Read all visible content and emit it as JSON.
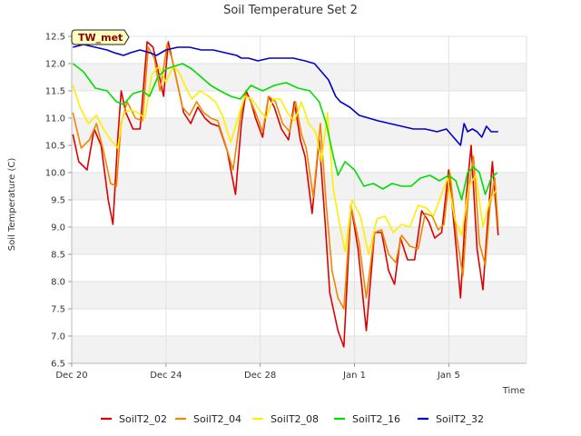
{
  "chart_data": {
    "type": "line",
    "title": "Soil Temperature Set 2",
    "badge": "TW_met",
    "xlabel": "Time",
    "ylabel": "Soil Temperature (C)",
    "xlim": [
      0,
      19.3
    ],
    "ylim": [
      6.5,
      12.5
    ],
    "x_ticks": [
      {
        "x": 0,
        "label": "Dec 20"
      },
      {
        "x": 4,
        "label": "Dec 24"
      },
      {
        "x": 8,
        "label": "Dec 28"
      },
      {
        "x": 12,
        "label": "Jan 1"
      },
      {
        "x": 16,
        "label": "Jan 5"
      }
    ],
    "y_ticks": [
      6.5,
      7.0,
      7.5,
      8.0,
      8.5,
      9.0,
      9.5,
      10.0,
      10.5,
      11.0,
      11.5,
      12.0,
      12.5
    ],
    "y_tick_labels": [
      "6.5",
      "7.0",
      "7.5",
      "8.0",
      "8.5",
      "9.0",
      "9.5",
      "10.0",
      "10.5",
      "11.0",
      "11.5",
      "12.0",
      "12.5"
    ],
    "grid": true,
    "legend_position": "bottom",
    "series": [
      {
        "name": "SoilT2_02",
        "color": "#dd0000",
        "x": [
          0.05,
          0.3,
          0.65,
          0.95,
          1.25,
          1.55,
          1.75,
          1.95,
          2.1,
          2.3,
          2.6,
          2.9,
          3.2,
          3.45,
          3.6,
          3.9,
          4.1,
          4.3,
          4.5,
          4.75,
          5.05,
          5.35,
          5.65,
          5.9,
          6.25,
          6.6,
          6.95,
          7.2,
          7.4,
          7.6,
          7.8,
          8.1,
          8.35,
          8.6,
          8.9,
          9.2,
          9.45,
          9.7,
          9.9,
          10.2,
          10.5,
          10.75,
          10.95,
          11.3,
          11.55,
          11.85,
          12.15,
          12.5,
          12.85,
          13.15,
          13.45,
          13.7,
          13.95,
          14.25,
          14.55,
          14.85,
          15.15,
          15.4,
          15.7,
          16.0,
          16.3,
          16.5,
          16.75,
          16.95,
          17.2,
          17.45,
          17.65,
          17.85,
          18.1
        ],
        "y": [
          10.7,
          10.2,
          10.05,
          10.8,
          10.5,
          9.5,
          9.05,
          10.6,
          11.5,
          11.1,
          10.8,
          10.8,
          12.4,
          12.3,
          12.0,
          11.4,
          12.4,
          12.0,
          11.6,
          11.1,
          10.9,
          11.2,
          11.0,
          10.9,
          10.85,
          10.4,
          9.6,
          10.9,
          11.5,
          11.3,
          11.0,
          10.65,
          11.4,
          11.2,
          10.8,
          10.6,
          11.3,
          10.6,
          10.3,
          9.25,
          10.6,
          9.1,
          7.8,
          7.1,
          6.8,
          9.4,
          8.6,
          7.1,
          8.9,
          8.9,
          8.2,
          7.95,
          8.8,
          8.4,
          8.4,
          9.3,
          9.1,
          8.8,
          8.9,
          10.05,
          8.7,
          7.7,
          9.6,
          10.5,
          8.6,
          7.85,
          9.1,
          10.2,
          8.85
        ]
      },
      {
        "name": "SoilT2_04",
        "color": "#ee8800",
        "x": [
          0.05,
          0.4,
          0.75,
          1.05,
          1.35,
          1.65,
          1.9,
          2.1,
          2.35,
          2.7,
          3.0,
          3.25,
          3.5,
          3.75,
          4.05,
          4.25,
          4.45,
          4.7,
          5.0,
          5.3,
          5.6,
          5.9,
          6.2,
          6.5,
          6.85,
          7.15,
          7.35,
          7.55,
          7.8,
          8.1,
          8.35,
          8.65,
          8.95,
          9.25,
          9.5,
          9.75,
          9.95,
          10.25,
          10.55,
          10.8,
          11.05,
          11.3,
          11.55,
          11.85,
          12.2,
          12.5,
          12.85,
          13.15,
          13.45,
          13.75,
          14.0,
          14.35,
          14.7,
          15.0,
          15.3,
          15.55,
          15.8,
          16.05,
          16.35,
          16.6,
          16.85,
          17.05,
          17.3,
          17.55,
          17.75,
          17.95,
          18.1
        ],
        "y": [
          11.1,
          10.45,
          10.6,
          10.9,
          10.4,
          9.8,
          9.75,
          10.9,
          11.3,
          11.0,
          10.95,
          12.3,
          12.1,
          11.5,
          12.35,
          12.1,
          11.7,
          11.2,
          11.05,
          11.3,
          11.1,
          11.0,
          10.95,
          10.55,
          10.05,
          11.0,
          11.45,
          11.35,
          11.1,
          10.75,
          11.4,
          11.3,
          10.9,
          10.75,
          11.3,
          10.7,
          10.45,
          9.55,
          10.9,
          9.4,
          8.2,
          7.7,
          7.5,
          9.4,
          8.7,
          7.7,
          8.9,
          8.95,
          8.5,
          8.35,
          8.85,
          8.65,
          8.6,
          9.25,
          9.2,
          8.95,
          9.05,
          10.0,
          8.8,
          8.1,
          9.7,
          10.3,
          8.7,
          8.3,
          9.4,
          9.9,
          9.0
        ]
      },
      {
        "name": "SoilT2_08",
        "color": "#ffee00",
        "x": [
          0.05,
          0.35,
          0.7,
          1.05,
          1.35,
          1.65,
          1.95,
          2.2,
          2.5,
          2.8,
          3.1,
          3.4,
          3.7,
          4.0,
          4.3,
          4.55,
          4.8,
          5.1,
          5.45,
          5.8,
          6.1,
          6.4,
          6.75,
          7.05,
          7.35,
          7.65,
          7.95,
          8.25,
          8.55,
          8.85,
          9.15,
          9.45,
          9.75,
          10.05,
          10.35,
          10.6,
          10.85,
          11.1,
          11.35,
          11.6,
          11.9,
          12.25,
          12.6,
          12.95,
          13.3,
          13.65,
          14.0,
          14.35,
          14.7,
          15.05,
          15.35,
          15.65,
          15.95,
          16.25,
          16.55,
          16.85,
          17.15,
          17.45,
          17.75,
          18.05
        ],
        "y": [
          11.6,
          11.2,
          10.9,
          11.05,
          10.8,
          10.6,
          10.45,
          11.1,
          11.15,
          11.1,
          11.0,
          11.8,
          11.95,
          11.65,
          11.95,
          11.85,
          11.6,
          11.35,
          11.5,
          11.4,
          11.3,
          11.05,
          10.55,
          11.0,
          11.4,
          11.35,
          11.15,
          11.0,
          11.35,
          11.35,
          11.1,
          10.95,
          11.3,
          10.9,
          10.75,
          10.2,
          11.1,
          9.7,
          9.1,
          8.55,
          9.5,
          9.2,
          8.5,
          9.15,
          9.2,
          8.9,
          9.05,
          9.0,
          9.4,
          9.35,
          9.2,
          9.55,
          9.9,
          9.15,
          8.85,
          9.75,
          9.95,
          9.0,
          9.5,
          9.7
        ]
      },
      {
        "name": "SoilT2_16",
        "color": "#00dd00",
        "x": [
          0.05,
          0.5,
          1.0,
          1.5,
          1.9,
          2.2,
          2.6,
          3.0,
          3.3,
          3.65,
          4.0,
          4.35,
          4.7,
          5.1,
          5.5,
          5.9,
          6.3,
          6.75,
          7.15,
          7.6,
          8.1,
          8.6,
          9.1,
          9.6,
          10.1,
          10.5,
          10.8,
          11.1,
          11.3,
          11.6,
          12.0,
          12.4,
          12.8,
          13.2,
          13.6,
          14.0,
          14.4,
          14.8,
          15.2,
          15.6,
          16.0,
          16.3,
          16.55,
          16.8,
          17.05,
          17.3,
          17.55,
          17.8,
          18.05
        ],
        "y": [
          12.0,
          11.85,
          11.55,
          11.5,
          11.3,
          11.25,
          11.45,
          11.5,
          11.4,
          11.75,
          11.9,
          11.95,
          12.0,
          11.9,
          11.75,
          11.6,
          11.5,
          11.4,
          11.35,
          11.6,
          11.5,
          11.6,
          11.65,
          11.55,
          11.5,
          11.3,
          10.9,
          10.3,
          9.95,
          10.2,
          10.05,
          9.75,
          9.8,
          9.7,
          9.8,
          9.75,
          9.75,
          9.9,
          9.95,
          9.85,
          9.95,
          9.85,
          9.5,
          10.0,
          10.1,
          10.0,
          9.6,
          9.9,
          10.0
        ]
      },
      {
        "name": "SoilT2_32",
        "color": "#0000cc",
        "x": [
          0.05,
          0.5,
          1.0,
          1.5,
          1.8,
          2.2,
          2.5,
          2.9,
          3.3,
          3.6,
          3.8,
          4.0,
          4.5,
          5.0,
          5.5,
          6.0,
          6.5,
          7.0,
          7.2,
          7.5,
          7.9,
          8.4,
          8.9,
          9.4,
          9.9,
          10.3,
          10.6,
          10.9,
          11.2,
          11.4,
          11.8,
          12.2,
          12.6,
          13.0,
          13.5,
          14.0,
          14.5,
          15.0,
          15.5,
          15.9,
          16.1,
          16.3,
          16.5,
          16.65,
          16.8,
          17.0,
          17.2,
          17.4,
          17.6,
          17.8,
          18.1
        ],
        "y": [
          12.3,
          12.35,
          12.3,
          12.25,
          12.2,
          12.15,
          12.2,
          12.25,
          12.2,
          12.15,
          12.2,
          12.25,
          12.3,
          12.3,
          12.25,
          12.25,
          12.2,
          12.15,
          12.1,
          12.1,
          12.05,
          12.1,
          12.1,
          12.1,
          12.05,
          12.0,
          11.85,
          11.7,
          11.4,
          11.3,
          11.2,
          11.05,
          11.0,
          10.95,
          10.9,
          10.85,
          10.8,
          10.8,
          10.75,
          10.8,
          10.7,
          10.6,
          10.5,
          10.9,
          10.75,
          10.8,
          10.75,
          10.65,
          10.85,
          10.75,
          10.75
        ]
      }
    ]
  }
}
